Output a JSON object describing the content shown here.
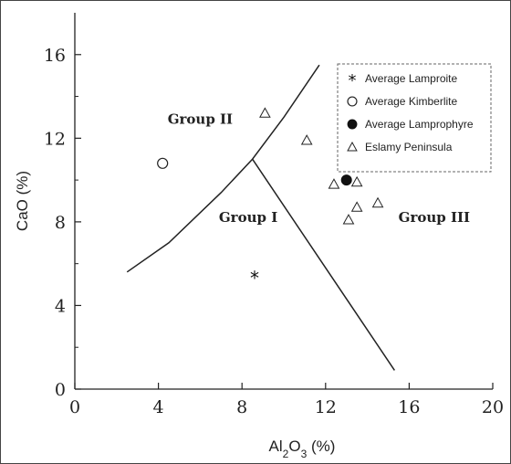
{
  "chart_data": {
    "type": "scatter",
    "title": "",
    "xlabel": "Al2O3 (%)",
    "xlabel_parts": {
      "a": "Al",
      "sub1": "2",
      "b": "O",
      "sub2": "3",
      "c": " (%)"
    },
    "ylabel": "CaO (%)",
    "xlim": [
      0,
      20
    ],
    "ylim": [
      0,
      18
    ],
    "xticks": [
      "0",
      "4",
      "8",
      "12",
      "16",
      "20"
    ],
    "xtick_values": [
      0,
      4,
      8,
      12,
      16,
      20
    ],
    "yticks": [
      "0",
      "4",
      "8",
      "12",
      "16"
    ],
    "ytick_values": [
      0,
      4,
      8,
      12,
      16
    ],
    "grid": false,
    "legend_position": "top-right",
    "legend": [
      {
        "label": "Average Lamproite",
        "marker": "star"
      },
      {
        "label": "Average Kimberlite",
        "marker": "open-circle"
      },
      {
        "label": "Average Lamprophyre",
        "marker": "filled-circle"
      },
      {
        "label": "Eslamy Peninsula",
        "marker": "open-triangle"
      }
    ],
    "series": [
      {
        "name": "Average Lamproite",
        "marker": "star",
        "x": [
          8.6
        ],
        "y": [
          5.4
        ]
      },
      {
        "name": "Average Kimberlite",
        "marker": "open-circle",
        "x": [
          4.2
        ],
        "y": [
          10.8
        ]
      },
      {
        "name": "Average Lamprophyre",
        "marker": "filled-circle",
        "x": [
          13.0
        ],
        "y": [
          10.0
        ]
      },
      {
        "name": "Eslamy Peninsula",
        "marker": "open-triangle",
        "x": [
          9.1,
          11.1,
          12.4,
          13.5,
          13.5,
          13.1,
          14.5
        ],
        "y": [
          13.2,
          11.9,
          9.8,
          9.9,
          8.7,
          8.1,
          8.9
        ]
      }
    ],
    "boundary_lines": [
      {
        "name": "group-ii-boundary",
        "x": [
          2.5,
          4.5,
          7.0,
          8.5,
          10.0,
          11.7
        ],
        "y": [
          5.6,
          7.0,
          9.4,
          11.0,
          13.0,
          15.5
        ]
      },
      {
        "name": "group-i-iii-boundary",
        "x": [
          8.5,
          15.3
        ],
        "y": [
          11.0,
          0.9
        ]
      }
    ],
    "region_labels": [
      {
        "text": "Group II",
        "x": 6.0,
        "y": 12.7
      },
      {
        "text": "Group I",
        "x": 8.3,
        "y": 8.0
      },
      {
        "text": "Group III",
        "x": 17.2,
        "y": 8.0
      }
    ]
  }
}
